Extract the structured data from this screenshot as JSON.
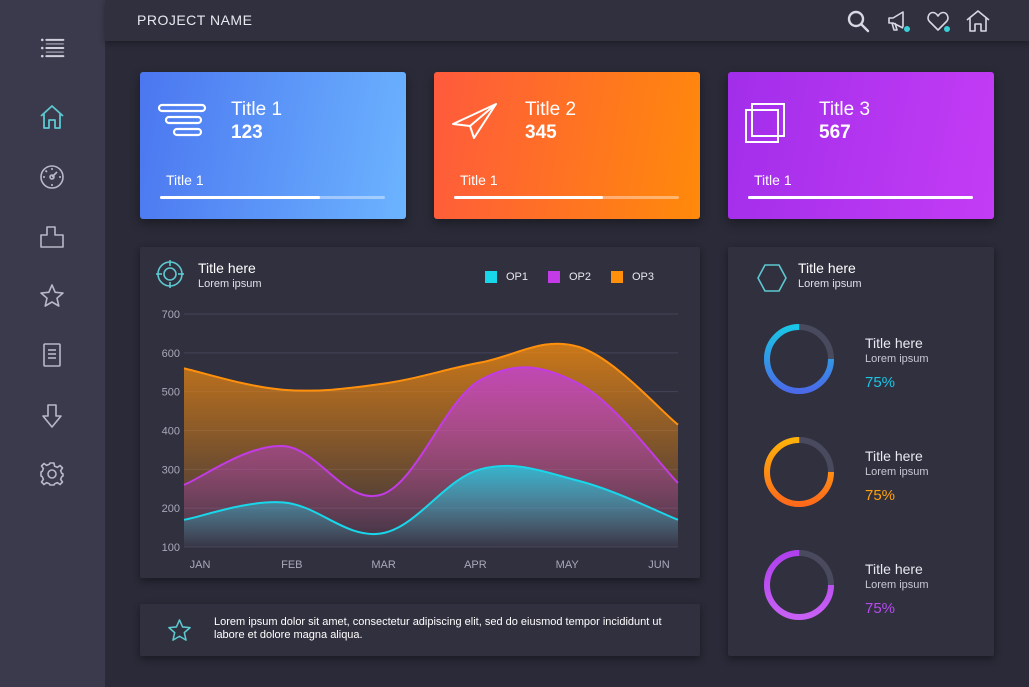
{
  "header": {
    "project_name": "PROJECT NAME"
  },
  "sidebar": {
    "menu_icon": "hamburger-menu-icon",
    "items": [
      {
        "icon": "home-icon",
        "color": "#5ec8d0"
      },
      {
        "icon": "dashboard-gauge-icon"
      },
      {
        "icon": "briefcase-icon"
      },
      {
        "icon": "star-icon"
      },
      {
        "icon": "document-icon"
      },
      {
        "icon": "download-arrow-icon"
      },
      {
        "icon": "gear-icon"
      }
    ]
  },
  "topbar_icons": [
    "search-icon",
    "megaphone-icon",
    "heart-icon",
    "home-icon"
  ],
  "cards": [
    {
      "title": "Title 1",
      "value": "123",
      "label": "Title 1",
      "progress": 0.71,
      "icon": "stack-lines-icon"
    },
    {
      "title": "Title 2",
      "value": "345",
      "label": "Title 1",
      "progress": 0.66,
      "icon": "paper-plane-icon"
    },
    {
      "title": "Title 3",
      "value": "567",
      "label": "Title 1",
      "progress": 1.0,
      "icon": "overlapping-squares-icon"
    }
  ],
  "chart_panel": {
    "title": "Title here",
    "subtitle": "Lorem ipsum",
    "icon": "target-icon"
  },
  "chart_data": {
    "type": "area",
    "categories": [
      "JAN",
      "FEB",
      "MAR",
      "APR",
      "MAY",
      "JUN"
    ],
    "ylim": [
      100,
      700
    ],
    "yticks": [
      "700",
      "600",
      "500",
      "400",
      "300",
      "200",
      "100"
    ],
    "grid": true,
    "legend_position": "top-right",
    "series": [
      {
        "name": "OP1",
        "color": "#19d7ea",
        "values": [
          170,
          215,
          135,
          300,
          270,
          170
        ]
      },
      {
        "name": "OP2",
        "color": "#c23be6",
        "values": [
          260,
          360,
          235,
          530,
          520,
          265
        ]
      },
      {
        "name": "OP3",
        "color": "#ff900c",
        "values": [
          560,
          505,
          520,
          575,
          615,
          415
        ]
      }
    ]
  },
  "right_panel": {
    "title": "Title here",
    "subtitle": "Lorem ipsum",
    "icon": "hexagon-icon",
    "items": [
      {
        "title": "Title here",
        "subtitle": "Lorem ipsum",
        "percent": "75%",
        "value": 0.75,
        "color": "#19c6e6",
        "color2": "#4a6ae8"
      },
      {
        "title": "Title here",
        "subtitle": "Lorem ipsum",
        "percent": "75%",
        "value": 0.75,
        "color": "#ffb10a",
        "color2": "#ff6a1a"
      },
      {
        "title": "Title here",
        "subtitle": "Lorem ipsum",
        "percent": "75%",
        "value": 0.75,
        "color": "#b040ee",
        "color2": "#c860f5"
      }
    ]
  },
  "footer": {
    "icon": "star-icon",
    "text": "Lorem ipsum dolor sit amet, consectetur adipiscing elit, sed do eiusmod tempor incididunt ut labore et dolore magna aliqua."
  }
}
